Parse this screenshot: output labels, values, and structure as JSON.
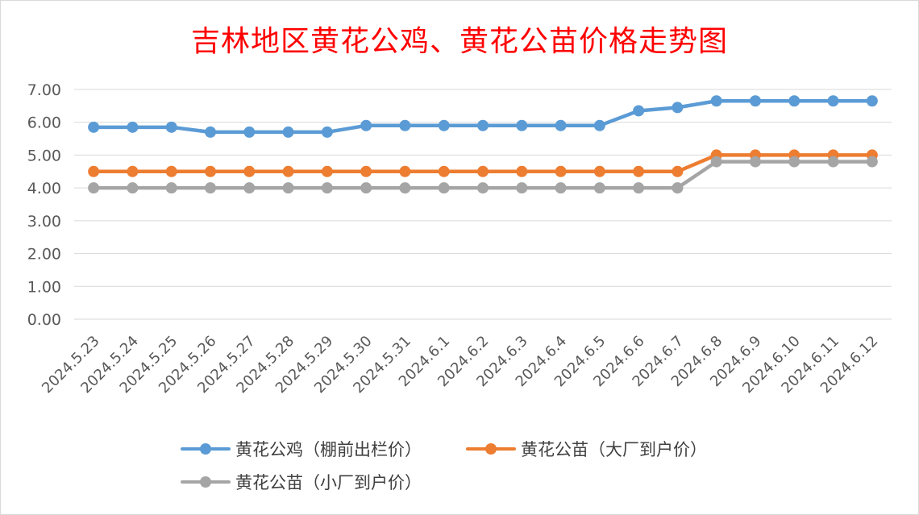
{
  "title": "吉林地区黄花公鸡、黄花公苗价格走势图",
  "colors": {
    "series1": "#5b9bd5",
    "series2": "#ed7d31",
    "series3": "#a5a5a5",
    "title": "#ff0000",
    "grid": "#d9d9d9",
    "axis_text": "#595959"
  },
  "chart_data": {
    "type": "line",
    "title": "吉林地区黄花公鸡、黄花公苗价格走势图",
    "xlabel": "",
    "ylabel": "",
    "ylim": [
      0,
      7
    ],
    "y_ticks": [
      "0.00",
      "1.00",
      "2.00",
      "3.00",
      "4.00",
      "5.00",
      "6.00",
      "7.00"
    ],
    "grid": true,
    "legend_position": "bottom",
    "categories": [
      "2024.5.23",
      "2024.5.24",
      "2024.5.25",
      "2024.5.26",
      "2024.5.27",
      "2024.5.28",
      "2024.5.29",
      "2024.5.30",
      "2024.5.31",
      "2024.6.1",
      "2024.6.2",
      "2024.6.3",
      "2024.6.4",
      "2024.6.5",
      "2024.6.6",
      "2024.6.7",
      "2024.6.8",
      "2024.6.9",
      "2024.6.10",
      "2024.6.11",
      "2024.6.12"
    ],
    "series": [
      {
        "name": "黄花公鸡（棚前出栏价）",
        "color": "#5b9bd5",
        "values": [
          5.85,
          5.85,
          5.85,
          5.7,
          5.7,
          5.7,
          5.7,
          5.9,
          5.9,
          5.9,
          5.9,
          5.9,
          5.9,
          5.9,
          6.35,
          6.45,
          6.65,
          6.65,
          6.65,
          6.65,
          6.65
        ]
      },
      {
        "name": "黄花公苗（大厂到户价）",
        "color": "#ed7d31",
        "values": [
          4.5,
          4.5,
          4.5,
          4.5,
          4.5,
          4.5,
          4.5,
          4.5,
          4.5,
          4.5,
          4.5,
          4.5,
          4.5,
          4.5,
          4.5,
          4.5,
          5.0,
          5.0,
          5.0,
          5.0,
          5.0
        ]
      },
      {
        "name": "黄花公苗（小厂到户价）",
        "color": "#a5a5a5",
        "values": [
          4.0,
          4.0,
          4.0,
          4.0,
          4.0,
          4.0,
          4.0,
          4.0,
          4.0,
          4.0,
          4.0,
          4.0,
          4.0,
          4.0,
          4.0,
          4.0,
          4.8,
          4.8,
          4.8,
          4.8,
          4.8
        ]
      }
    ]
  }
}
